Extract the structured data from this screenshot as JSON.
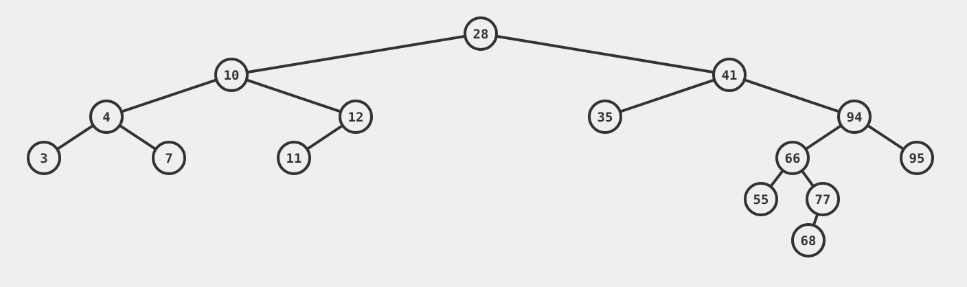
{
  "tree": {
    "colors": {
      "background": "#efefef",
      "stroke": "#333333",
      "text": "#333333"
    },
    "nodes": [
      {
        "id": "n28",
        "label": "28"
      },
      {
        "id": "n10",
        "label": "10"
      },
      {
        "id": "n41",
        "label": "41"
      },
      {
        "id": "n4",
        "label": "4"
      },
      {
        "id": "n12",
        "label": "12"
      },
      {
        "id": "n35",
        "label": "35"
      },
      {
        "id": "n94",
        "label": "94"
      },
      {
        "id": "n3",
        "label": "3"
      },
      {
        "id": "n7",
        "label": "7"
      },
      {
        "id": "n11",
        "label": "11"
      },
      {
        "id": "n66",
        "label": "66"
      },
      {
        "id": "n95",
        "label": "95"
      },
      {
        "id": "n55",
        "label": "55"
      },
      {
        "id": "n77",
        "label": "77"
      },
      {
        "id": "n68",
        "label": "68"
      }
    ],
    "edges": [
      [
        "n28",
        "n10"
      ],
      [
        "n28",
        "n41"
      ],
      [
        "n10",
        "n4"
      ],
      [
        "n10",
        "n12"
      ],
      [
        "n4",
        "n3"
      ],
      [
        "n4",
        "n7"
      ],
      [
        "n12",
        "n11"
      ],
      [
        "n41",
        "n35"
      ],
      [
        "n41",
        "n94"
      ],
      [
        "n94",
        "n66"
      ],
      [
        "n94",
        "n95"
      ],
      [
        "n66",
        "n55"
      ],
      [
        "n66",
        "n77"
      ],
      [
        "n77",
        "n68"
      ]
    ]
  }
}
